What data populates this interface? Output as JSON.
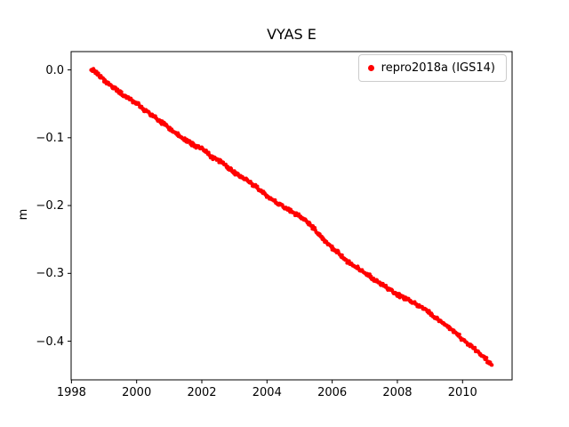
{
  "chart_data": {
    "type": "scatter",
    "title": "VYAS E",
    "xlabel": "",
    "ylabel": "m",
    "xlim": [
      1997.99,
      2011.52
    ],
    "ylim": [
      -0.457,
      0.027
    ],
    "xticks": [
      1998,
      2000,
      2002,
      2004,
      2006,
      2008,
      2010
    ],
    "xticklabels": [
      "1998",
      "2000",
      "2002",
      "2004",
      "2006",
      "2008",
      "2010"
    ],
    "yticks": [
      0.0,
      -0.1,
      -0.2,
      -0.3,
      -0.4
    ],
    "yticklabels": [
      "0.0",
      "−0.1",
      "−0.2",
      "−0.3",
      "−0.4"
    ],
    "grid": false,
    "legend_position": "upper right",
    "series": [
      {
        "name": "repro2018a (IGS14)",
        "color": "#ff0000",
        "marker": "dot",
        "x": [
          1998.6,
          1999.0,
          1999.5,
          2000.0,
          2000.5,
          2001.0,
          2001.5,
          2002.0,
          2002.3,
          2002.6,
          2003.0,
          2003.4,
          2004.0,
          2004.5,
          2004.9,
          2005.2,
          2005.6,
          2006.0,
          2006.5,
          2007.0,
          2007.5,
          2008.0,
          2008.4,
          2008.8,
          2009.2,
          2009.6,
          2010.0,
          2010.4,
          2010.7,
          2010.9
        ],
        "y": [
          0.002,
          -0.015,
          -0.034,
          -0.05,
          -0.068,
          -0.086,
          -0.104,
          -0.116,
          -0.128,
          -0.135,
          -0.152,
          -0.163,
          -0.186,
          -0.202,
          -0.213,
          -0.222,
          -0.243,
          -0.262,
          -0.284,
          -0.299,
          -0.316,
          -0.331,
          -0.341,
          -0.352,
          -0.366,
          -0.38,
          -0.397,
          -0.413,
          -0.426,
          -0.435
        ]
      }
    ]
  }
}
